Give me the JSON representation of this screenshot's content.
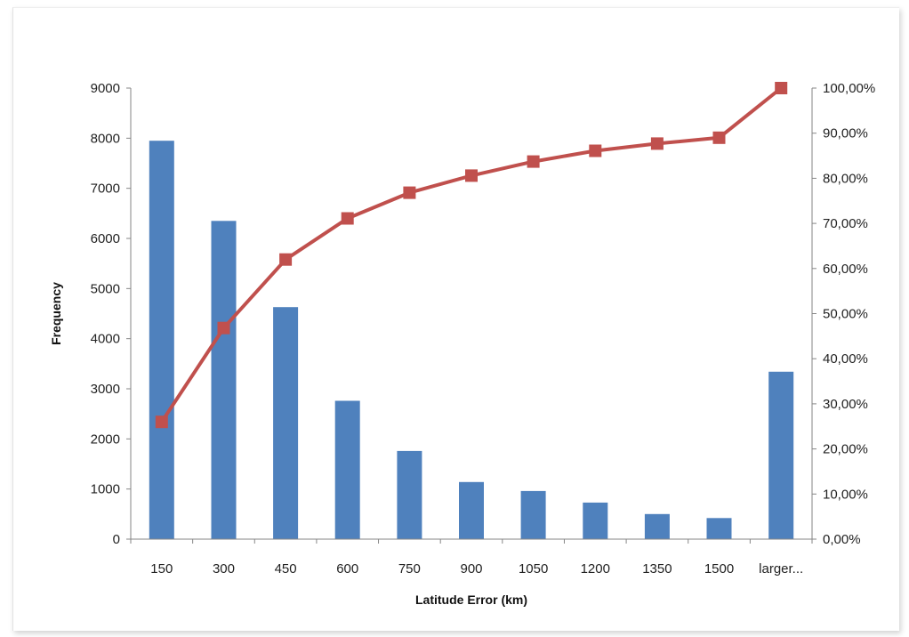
{
  "chart_data": {
    "type": "bar",
    "title": "",
    "xlabel": "Latitude Error (km)",
    "ylabel": "Frequency",
    "categories": [
      "150",
      "300",
      "450",
      "600",
      "750",
      "900",
      "1050",
      "1200",
      "1350",
      "1500",
      "larger..."
    ],
    "series": [
      {
        "type": "bar",
        "axis": "left",
        "color": "#4f81bd",
        "values": [
          7950,
          6350,
          4630,
          2760,
          1760,
          1140,
          960,
          730,
          500,
          420,
          3340
        ]
      },
      {
        "type": "line",
        "axis": "right",
        "color": "#c0504d",
        "values": [
          26.0,
          46.8,
          62.0,
          71.1,
          76.8,
          80.6,
          83.7,
          86.1,
          87.7,
          89.0,
          100.0
        ]
      }
    ],
    "ylim": [
      0,
      9000
    ],
    "yticks": [
      "0",
      "1000",
      "2000",
      "3000",
      "4000",
      "5000",
      "6000",
      "7000",
      "8000",
      "9000"
    ],
    "y2lim": [
      0,
      100
    ],
    "y2ticks": [
      "0,00%",
      "10,00%",
      "20,00%",
      "30,00%",
      "40,00%",
      "50,00%",
      "60,00%",
      "70,00%",
      "80,00%",
      "90,00%",
      "100,00%"
    ],
    "grid": false,
    "legend": "none"
  }
}
